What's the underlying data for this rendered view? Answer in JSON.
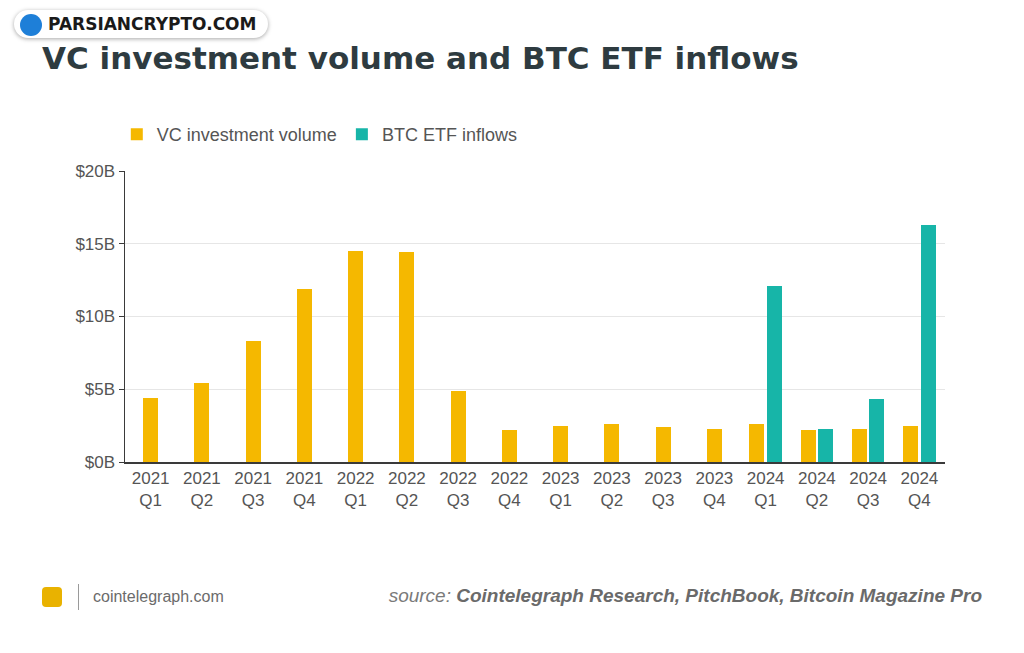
{
  "chart_data": {
    "type": "bar",
    "title": "VC investment volume and BTC ETF inflows",
    "watermark": "PARSIANCRYPTO.COM",
    "footer": "cointelegraph.com",
    "source_label": "source:",
    "source": "Cointelegraph Research, PitchBook, Bitcoin Magazine Pro",
    "categories": [
      "2021 Q1",
      "2021 Q2",
      "2021 Q3",
      "2021 Q4",
      "2022 Q1",
      "2022 Q2",
      "2022 Q3",
      "2022 Q4",
      "2023 Q1",
      "2023 Q2",
      "2023 Q3",
      "2023 Q4",
      "2024 Q1",
      "2024 Q2",
      "2024 Q3",
      "2024 Q4"
    ],
    "series": [
      {
        "name": "VC investment volume",
        "color": "#f5b800",
        "values": [
          4.4,
          5.4,
          8.3,
          11.9,
          14.5,
          14.4,
          4.9,
          2.2,
          2.5,
          2.6,
          2.4,
          2.3,
          2.6,
          2.2,
          2.3,
          2.5
        ]
      },
      {
        "name": "BTC ETF inflows",
        "color": "#17b5a8",
        "values": [
          null,
          null,
          null,
          null,
          null,
          null,
          null,
          null,
          null,
          null,
          null,
          null,
          12.1,
          2.3,
          4.3,
          16.3
        ]
      }
    ],
    "ylim": [
      0,
      20
    ],
    "yticks": [
      {
        "value": 0,
        "label": "$0B"
      },
      {
        "value": 5,
        "label": "$5B"
      },
      {
        "value": 10,
        "label": "$10B"
      },
      {
        "value": 15,
        "label": "$15B"
      },
      {
        "value": 20,
        "label": "$20B"
      }
    ],
    "grid": true,
    "legend": "top left"
  }
}
